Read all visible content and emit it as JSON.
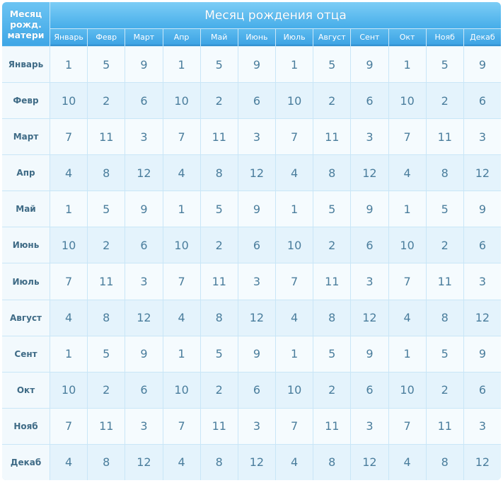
{
  "table": {
    "corner_label": "Месяц\nрожд.\nматери",
    "title": "Месяц рождения отца",
    "columns": [
      "Январь",
      "Февр",
      "Март",
      "Апр",
      "Май",
      "Июнь",
      "Июль",
      "Август",
      "Сент",
      "Окт",
      "Нояб",
      "Декаб"
    ],
    "rows": [
      {
        "label": "Январь",
        "values": [
          1,
          5,
          9,
          1,
          5,
          9,
          1,
          5,
          9,
          1,
          5,
          9
        ]
      },
      {
        "label": "Февр",
        "values": [
          10,
          2,
          6,
          10,
          2,
          6,
          10,
          2,
          6,
          10,
          2,
          6
        ]
      },
      {
        "label": "Март",
        "values": [
          7,
          11,
          3,
          7,
          11,
          3,
          7,
          11,
          3,
          7,
          11,
          3
        ]
      },
      {
        "label": "Апр",
        "values": [
          4,
          8,
          12,
          4,
          8,
          12,
          4,
          8,
          12,
          4,
          8,
          12
        ]
      },
      {
        "label": "Май",
        "values": [
          1,
          5,
          9,
          1,
          5,
          9,
          1,
          5,
          9,
          1,
          5,
          9
        ]
      },
      {
        "label": "Июнь",
        "values": [
          10,
          2,
          6,
          10,
          2,
          6,
          10,
          2,
          6,
          10,
          2,
          6
        ]
      },
      {
        "label": "Июль",
        "values": [
          7,
          11,
          3,
          7,
          11,
          3,
          7,
          11,
          3,
          7,
          11,
          3
        ]
      },
      {
        "label": "Август",
        "values": [
          4,
          8,
          12,
          4,
          8,
          12,
          4,
          8,
          12,
          4,
          8,
          12
        ]
      },
      {
        "label": "Сент",
        "values": [
          1,
          5,
          9,
          1,
          5,
          9,
          1,
          5,
          9,
          1,
          5,
          9
        ]
      },
      {
        "label": "Окт",
        "values": [
          10,
          2,
          6,
          10,
          2,
          6,
          10,
          2,
          6,
          10,
          2,
          6
        ]
      },
      {
        "label": "Нояб",
        "values": [
          7,
          11,
          3,
          7,
          11,
          3,
          7,
          11,
          3,
          7,
          11,
          3
        ]
      },
      {
        "label": "Декаб",
        "values": [
          4,
          8,
          12,
          4,
          8,
          12,
          4,
          8,
          12,
          4,
          8,
          12
        ]
      }
    ]
  }
}
